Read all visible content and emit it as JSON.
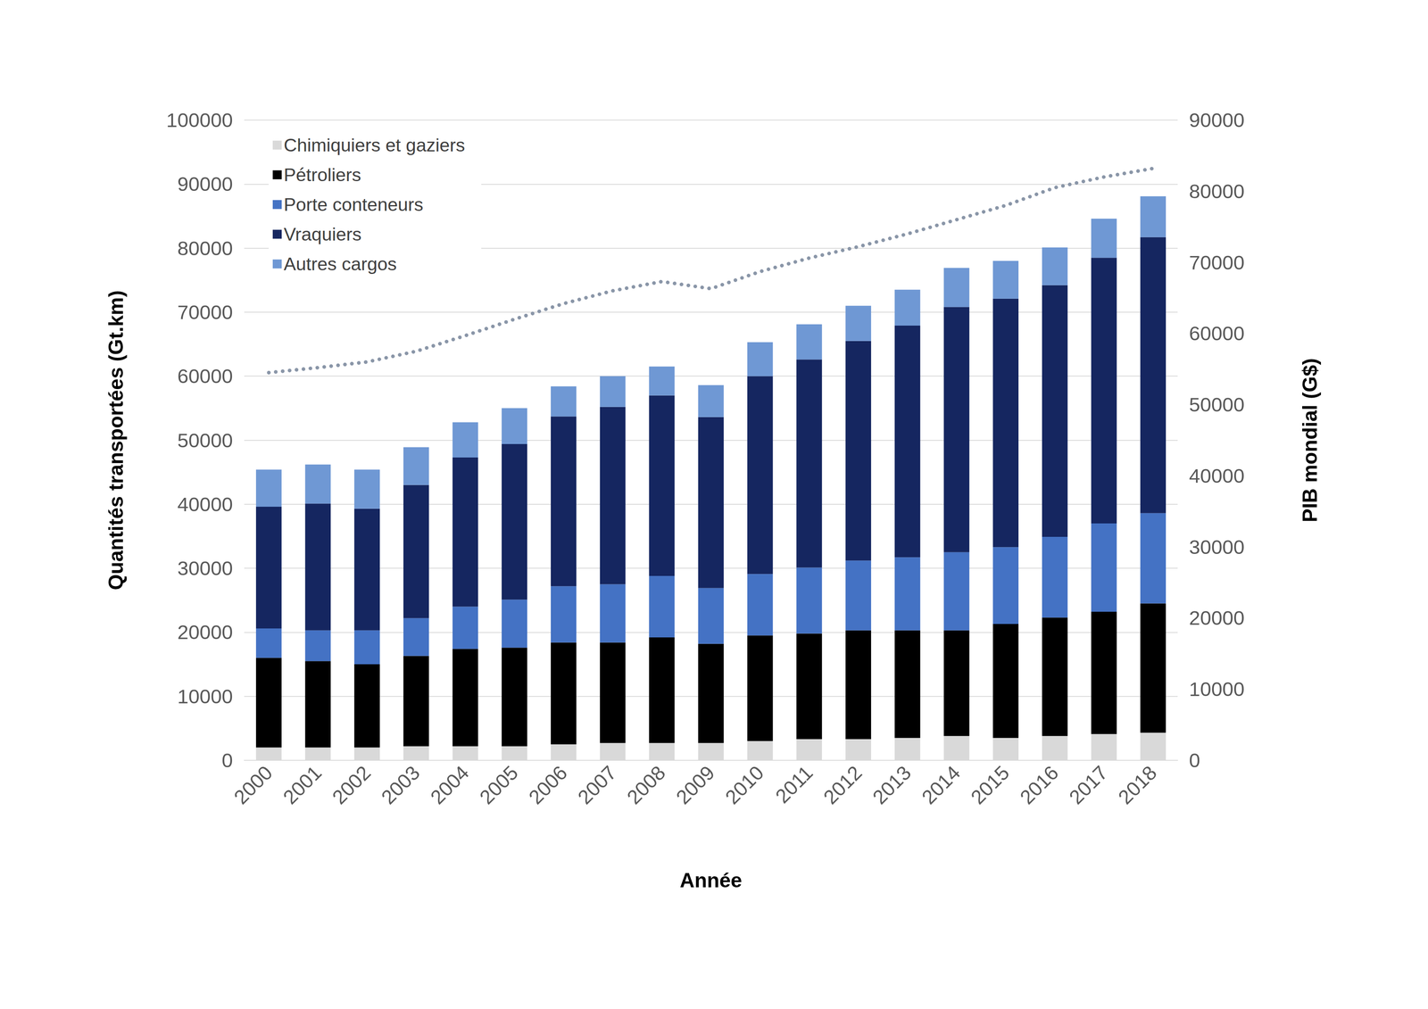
{
  "chart_data": {
    "type": "bar",
    "stacked": true,
    "grid": true,
    "legend": "upper left",
    "x_label": "Année",
    "y_label": "Quantités transportées (Gt.km)",
    "y2_label": "PIB mondial (G$)",
    "categories": [
      "2000",
      "2001",
      "2002",
      "2003",
      "2004",
      "2005",
      "2006",
      "2007",
      "2008",
      "2009",
      "2010",
      "2011",
      "2012",
      "2013",
      "2014",
      "2015",
      "2016",
      "2017",
      "2018"
    ],
    "ylim": [
      0,
      100000
    ],
    "yticks": [
      0,
      10000,
      20000,
      30000,
      40000,
      50000,
      60000,
      70000,
      80000,
      90000,
      100000
    ],
    "y2lim": [
      0,
      90000
    ],
    "y2ticks": [
      0,
      10000,
      20000,
      30000,
      40000,
      50000,
      60000,
      70000,
      80000,
      90000
    ],
    "series": [
      {
        "name": "Chimiquiers et gaziers",
        "color": "#d9d9d9",
        "type": "bar",
        "values": [
          2000,
          2000,
          2000,
          2200,
          2200,
          2200,
          2500,
          2700,
          2700,
          2700,
          3000,
          3300,
          3300,
          3500,
          3800,
          3500,
          3800,
          4100,
          4300
        ]
      },
      {
        "name": "Pétroliers",
        "color": "#000000",
        "type": "bar",
        "values": [
          14000,
          13500,
          13000,
          14100,
          15200,
          15400,
          15900,
          15700,
          16500,
          15500,
          16500,
          16500,
          17000,
          16800,
          16500,
          17800,
          18500,
          19100,
          20200
        ]
      },
      {
        "name": "Porte conteneurs",
        "color": "#4472c4",
        "type": "bar",
        "values": [
          4600,
          4800,
          5300,
          5900,
          6600,
          7500,
          8800,
          9100,
          9600,
          8700,
          9600,
          10300,
          10900,
          11400,
          12200,
          12000,
          12600,
          13800,
          14100
        ]
      },
      {
        "name": "Vraquiers",
        "color": "#152660",
        "type": "bar",
        "values": [
          19000,
          19800,
          19000,
          20800,
          23300,
          24300,
          26500,
          27700,
          28200,
          26700,
          30900,
          32500,
          34300,
          36200,
          38300,
          38800,
          39300,
          41500,
          43100
        ]
      },
      {
        "name": "Autres cargos",
        "color": "#6f98d4",
        "type": "bar",
        "values": [
          5800,
          6100,
          6100,
          5900,
          5500,
          5600,
          4700,
          4800,
          4500,
          5000,
          5300,
          5500,
          5500,
          5600,
          6100,
          5900,
          5900,
          6100,
          6400
        ]
      },
      {
        "type": "line",
        "axis": "y2",
        "color": "#8a96a8",
        "line_style": "dotted",
        "marker": "none",
        "values": [
          54500,
          55200,
          56000,
          57500,
          59700,
          62000,
          64200,
          66000,
          67300,
          66300,
          68700,
          70600,
          72200,
          74000,
          76000,
          78000,
          80500,
          82000,
          83200
        ]
      }
    ]
  }
}
